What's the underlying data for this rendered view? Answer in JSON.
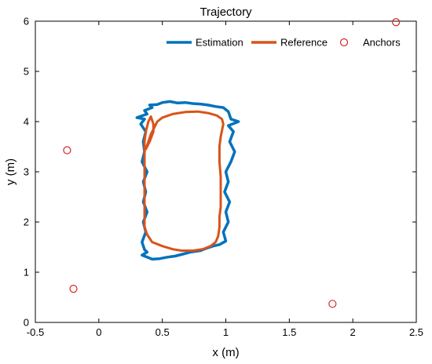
{
  "chart_data": {
    "type": "line",
    "title": "Trajectory",
    "xlabel": "x (m)",
    "ylabel": "y (m)",
    "xlim": [
      -0.5,
      2.5
    ],
    "ylim": [
      0,
      6
    ],
    "xticks": [
      -0.5,
      0,
      0.5,
      1,
      1.5,
      2,
      2.5
    ],
    "yticks": [
      0,
      1,
      2,
      3,
      4,
      5,
      6
    ],
    "xtick_labels": [
      "-0.5",
      "0",
      "0.5",
      "1",
      "1.5",
      "2",
      "2.5"
    ],
    "ytick_labels": [
      "0",
      "1",
      "2",
      "3",
      "4",
      "5",
      "6"
    ],
    "grid": false,
    "legend_position": "top-right",
    "series": [
      {
        "name": "Estimation",
        "type": "line",
        "color": "#0072BD",
        "points": [
          [
            0.36,
            1.45
          ],
          [
            0.34,
            1.6
          ],
          [
            0.37,
            1.8
          ],
          [
            0.35,
            2.0
          ],
          [
            0.38,
            2.2
          ],
          [
            0.35,
            2.4
          ],
          [
            0.37,
            2.6
          ],
          [
            0.35,
            2.8
          ],
          [
            0.38,
            3.0
          ],
          [
            0.34,
            3.2
          ],
          [
            0.36,
            3.4
          ],
          [
            0.35,
            3.6
          ],
          [
            0.37,
            3.8
          ],
          [
            0.33,
            3.95
          ],
          [
            0.36,
            4.05
          ],
          [
            0.3,
            4.08
          ],
          [
            0.38,
            4.15
          ],
          [
            0.36,
            4.22
          ],
          [
            0.42,
            4.28
          ],
          [
            0.4,
            4.33
          ],
          [
            0.46,
            4.34
          ],
          [
            0.5,
            4.38
          ],
          [
            0.56,
            4.4
          ],
          [
            0.62,
            4.37
          ],
          [
            0.68,
            4.38
          ],
          [
            0.74,
            4.36
          ],
          [
            0.8,
            4.35
          ],
          [
            0.86,
            4.33
          ],
          [
            0.92,
            4.3
          ],
          [
            0.98,
            4.28
          ],
          [
            1.02,
            4.2
          ],
          [
            1.04,
            4.05
          ],
          [
            1.1,
            4.0
          ],
          [
            1.02,
            3.92
          ],
          [
            1.06,
            3.8
          ],
          [
            1.03,
            3.6
          ],
          [
            1.07,
            3.4
          ],
          [
            1.04,
            3.2
          ],
          [
            1.0,
            3.0
          ],
          [
            1.02,
            2.8
          ],
          [
            0.99,
            2.6
          ],
          [
            1.03,
            2.4
          ],
          [
            1.0,
            2.2
          ],
          [
            1.02,
            2.0
          ],
          [
            0.98,
            1.8
          ],
          [
            1.0,
            1.62
          ],
          [
            0.95,
            1.55
          ],
          [
            0.9,
            1.52
          ],
          [
            0.85,
            1.48
          ],
          [
            0.8,
            1.43
          ],
          [
            0.72,
            1.4
          ],
          [
            0.66,
            1.36
          ],
          [
            0.6,
            1.32
          ],
          [
            0.54,
            1.3
          ],
          [
            0.48,
            1.27
          ],
          [
            0.42,
            1.26
          ],
          [
            0.38,
            1.3
          ],
          [
            0.34,
            1.34
          ],
          [
            0.38,
            1.4
          ],
          [
            0.36,
            1.45
          ]
        ]
      },
      {
        "name": "Reference",
        "type": "line",
        "color": "#D95319",
        "points": [
          [
            0.42,
            1.6
          ],
          [
            0.5,
            1.52
          ],
          [
            0.58,
            1.46
          ],
          [
            0.65,
            1.43
          ],
          [
            0.74,
            1.43
          ],
          [
            0.82,
            1.46
          ],
          [
            0.88,
            1.52
          ],
          [
            0.92,
            1.6
          ],
          [
            0.94,
            1.72
          ],
          [
            0.95,
            1.9
          ],
          [
            0.95,
            2.1
          ],
          [
            0.96,
            2.3
          ],
          [
            0.96,
            2.6
          ],
          [
            0.96,
            2.9
          ],
          [
            0.95,
            3.2
          ],
          [
            0.95,
            3.5
          ],
          [
            0.96,
            3.7
          ],
          [
            0.98,
            3.95
          ],
          [
            0.97,
            4.05
          ],
          [
            0.93,
            4.12
          ],
          [
            0.86,
            4.17
          ],
          [
            0.78,
            4.2
          ],
          [
            0.68,
            4.19
          ],
          [
            0.58,
            4.15
          ],
          [
            0.5,
            4.08
          ],
          [
            0.46,
            4.0
          ],
          [
            0.44,
            3.9
          ],
          [
            0.41,
            3.75
          ],
          [
            0.39,
            3.6
          ],
          [
            0.37,
            3.45
          ],
          [
            0.4,
            3.6
          ],
          [
            0.43,
            3.8
          ],
          [
            0.43,
            3.95
          ],
          [
            0.41,
            4.1
          ],
          [
            0.39,
            4.0
          ],
          [
            0.37,
            3.8
          ],
          [
            0.36,
            3.6
          ],
          [
            0.36,
            3.3
          ],
          [
            0.36,
            3.0
          ],
          [
            0.36,
            2.7
          ],
          [
            0.36,
            2.4
          ],
          [
            0.36,
            2.1
          ],
          [
            0.36,
            1.9
          ],
          [
            0.38,
            1.75
          ],
          [
            0.42,
            1.6
          ]
        ]
      },
      {
        "name": "Anchors",
        "type": "scatter",
        "color": "#D62728",
        "points": [
          [
            -0.25,
            3.43
          ],
          [
            -0.2,
            0.67
          ],
          [
            1.84,
            0.37
          ],
          [
            2.34,
            5.98
          ]
        ]
      }
    ]
  }
}
